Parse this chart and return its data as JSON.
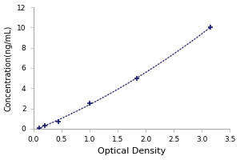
{
  "x_data": [
    0.1,
    0.2,
    0.45,
    1.0,
    1.85,
    3.15
  ],
  "y_data": [
    0.1,
    0.3,
    0.7,
    2.5,
    5.0,
    10.0
  ],
  "xlabel": "Optical Density",
  "ylabel": "Concentration(ng/mL)",
  "xlim": [
    0,
    3.5
  ],
  "ylim": [
    0,
    12
  ],
  "xticks": [
    0,
    0.5,
    1.0,
    1.5,
    2.0,
    2.5,
    3.0,
    3.5
  ],
  "yticks": [
    0,
    2,
    4,
    6,
    8,
    10,
    12
  ],
  "line_color": "#1a1a6e",
  "gray_line_color": "#aaaaaa",
  "marker_color": "#1a1a6e",
  "bg_color": "#ffffff",
  "plot_bg": "#ffffff",
  "xlabel_fontsize": 8,
  "ylabel_fontsize": 7,
  "tick_fontsize": 6.5
}
